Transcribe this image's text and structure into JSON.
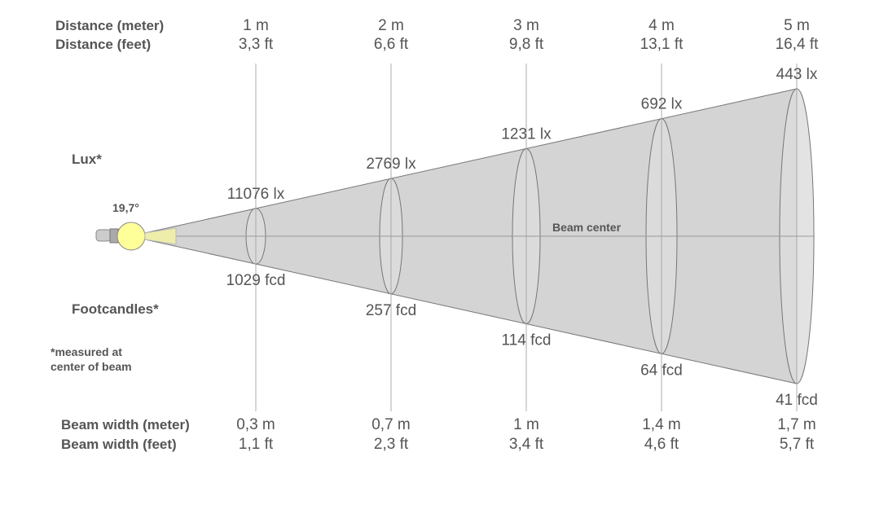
{
  "labels": {
    "distance_meter": "Distance (meter)",
    "distance_feet": "Distance (feet)",
    "lux": "Lux*",
    "footcandles": "Footcandles*",
    "note_line1": "*measured at",
    "note_line2": "center of beam",
    "beam_width_meter": "Beam width (meter)",
    "beam_width_feet": "Beam width (feet)",
    "beam_center": "Beam center",
    "beam_angle": "19,7°"
  },
  "colors": {
    "cone": "#d4d4d4",
    "bulb": "#ffff99",
    "beam": "#eeeeaa",
    "text": "#555555"
  },
  "columns": [
    {
      "distance_m": "1 m",
      "distance_ft": "3,3 ft",
      "lux": "11076 lx",
      "fcd": "1029 fcd",
      "width_m": "0,3 m",
      "width_ft": "1,1 ft"
    },
    {
      "distance_m": "2 m",
      "distance_ft": "6,6 ft",
      "lux": "2769 lx",
      "fcd": "257 fcd",
      "width_m": "0,7 m",
      "width_ft": "2,3 ft"
    },
    {
      "distance_m": "3 m",
      "distance_ft": "9,8 ft",
      "lux": "1231 lx",
      "fcd": "114 fcd",
      "width_m": "1 m",
      "width_ft": "3,4 ft"
    },
    {
      "distance_m": "4 m",
      "distance_ft": "13,1 ft",
      "lux": "692 lx",
      "fcd": "64 fcd",
      "width_m": "1,4 m",
      "width_ft": "4,6 ft"
    },
    {
      "distance_m": "5 m",
      "distance_ft": "16,4 ft",
      "lux": "443 lx",
      "fcd": "41 fcd",
      "width_m": "1,7 m",
      "width_ft": "5,7 ft"
    }
  ]
}
